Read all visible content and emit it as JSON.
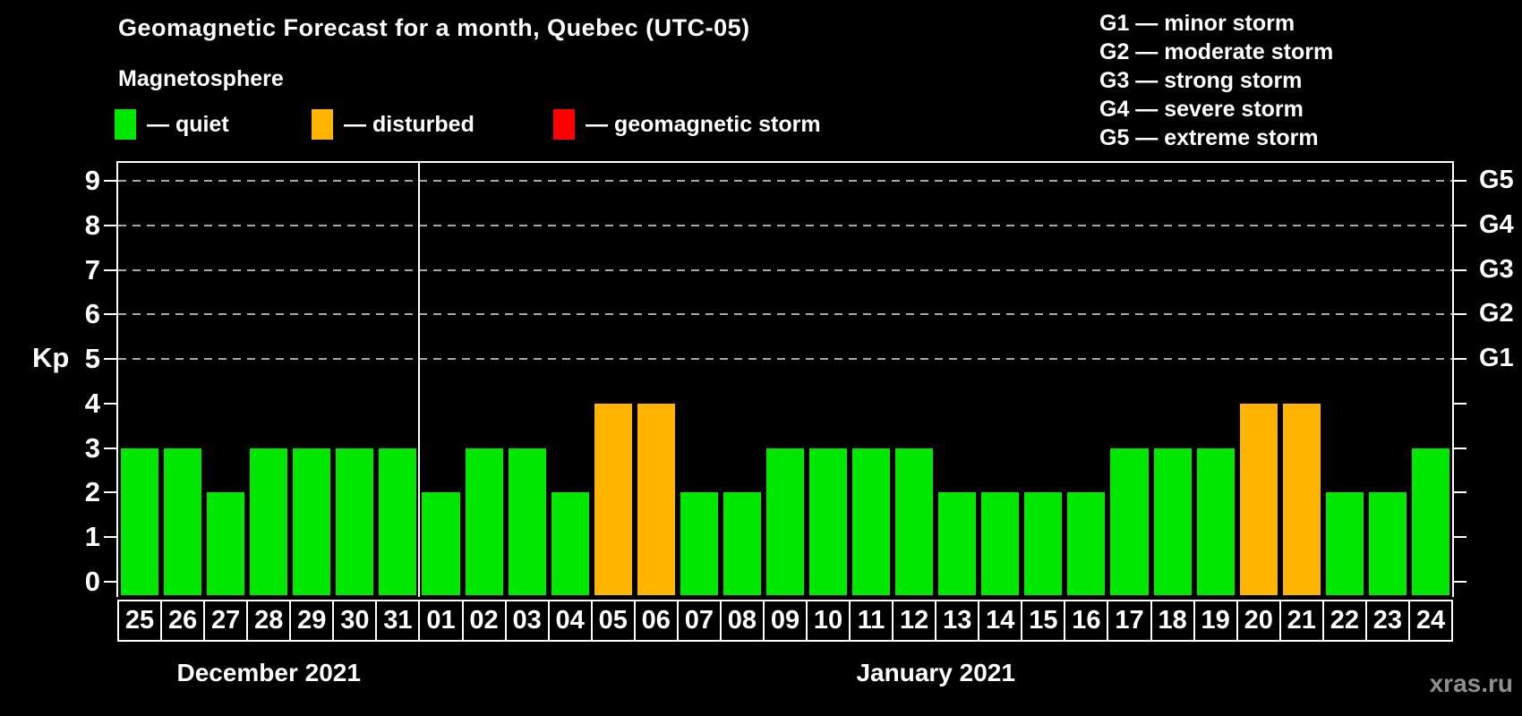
{
  "title": "Geomagnetic Forecast for a month, Quebec (UTC-05)",
  "subtitle": "Magnetosphere",
  "legend": {
    "items": [
      {
        "label": "— quiet",
        "status": "quiet"
      },
      {
        "label": "— disturbed",
        "status": "disturbed"
      },
      {
        "label": "— geomagnetic storm",
        "status": "storm"
      }
    ]
  },
  "g_legend": [
    "G1 — minor storm",
    "G2 — moderate storm",
    "G3 — strong storm",
    "G4 — severe storm",
    "G5 — extreme storm"
  ],
  "y_axis": {
    "label": "Kp",
    "ticks": [
      0,
      1,
      2,
      3,
      4,
      5,
      6,
      7,
      8,
      9
    ]
  },
  "right_axis": {
    "labels": [
      {
        "text": "G1",
        "kp": 5
      },
      {
        "text": "G2",
        "kp": 6
      },
      {
        "text": "G3",
        "kp": 7
      },
      {
        "text": "G4",
        "kp": 8
      },
      {
        "text": "G5",
        "kp": 9
      }
    ]
  },
  "watermark": "xras.ru",
  "chart_data": {
    "type": "bar",
    "title": "Geomagnetic Forecast for a month, Quebec (UTC-05)",
    "xlabel": "",
    "ylabel": "Kp",
    "ylim": [
      0,
      9
    ],
    "gridlines_at": [
      5,
      6,
      7,
      8,
      9
    ],
    "grid": "dashed-horizontal",
    "legend_position": "top-left",
    "status_colors": {
      "quiet": "#00e800",
      "disturbed": "#ffb400",
      "storm": "#ff0000"
    },
    "groups": [
      {
        "month_label": "December 2021",
        "days": [
          {
            "date": "25",
            "kp": 3,
            "status": "quiet"
          },
          {
            "date": "26",
            "kp": 3,
            "status": "quiet"
          },
          {
            "date": "27",
            "kp": 2,
            "status": "quiet"
          },
          {
            "date": "28",
            "kp": 3,
            "status": "quiet"
          },
          {
            "date": "29",
            "kp": 3,
            "status": "quiet"
          },
          {
            "date": "30",
            "kp": 3,
            "status": "quiet"
          },
          {
            "date": "31",
            "kp": 3,
            "status": "quiet"
          }
        ]
      },
      {
        "month_label": "January 2021",
        "days": [
          {
            "date": "01",
            "kp": 2,
            "status": "quiet"
          },
          {
            "date": "02",
            "kp": 3,
            "status": "quiet"
          },
          {
            "date": "03",
            "kp": 3,
            "status": "quiet"
          },
          {
            "date": "04",
            "kp": 2,
            "status": "quiet"
          },
          {
            "date": "05",
            "kp": 4,
            "status": "disturbed"
          },
          {
            "date": "06",
            "kp": 4,
            "status": "disturbed"
          },
          {
            "date": "07",
            "kp": 2,
            "status": "quiet"
          },
          {
            "date": "08",
            "kp": 2,
            "status": "quiet"
          },
          {
            "date": "09",
            "kp": 3,
            "status": "quiet"
          },
          {
            "date": "10",
            "kp": 3,
            "status": "quiet"
          },
          {
            "date": "11",
            "kp": 3,
            "status": "quiet"
          },
          {
            "date": "12",
            "kp": 3,
            "status": "quiet"
          },
          {
            "date": "13",
            "kp": 2,
            "status": "quiet"
          },
          {
            "date": "14",
            "kp": 2,
            "status": "quiet"
          },
          {
            "date": "15",
            "kp": 2,
            "status": "quiet"
          },
          {
            "date": "16",
            "kp": 2,
            "status": "quiet"
          },
          {
            "date": "17",
            "kp": 3,
            "status": "quiet"
          },
          {
            "date": "18",
            "kp": 3,
            "status": "quiet"
          },
          {
            "date": "19",
            "kp": 3,
            "status": "quiet"
          },
          {
            "date": "20",
            "kp": 4,
            "status": "disturbed"
          },
          {
            "date": "21",
            "kp": 4,
            "status": "disturbed"
          },
          {
            "date": "22",
            "kp": 2,
            "status": "quiet"
          },
          {
            "date": "23",
            "kp": 2,
            "status": "quiet"
          },
          {
            "date": "24",
            "kp": 3,
            "status": "quiet"
          }
        ]
      }
    ]
  }
}
